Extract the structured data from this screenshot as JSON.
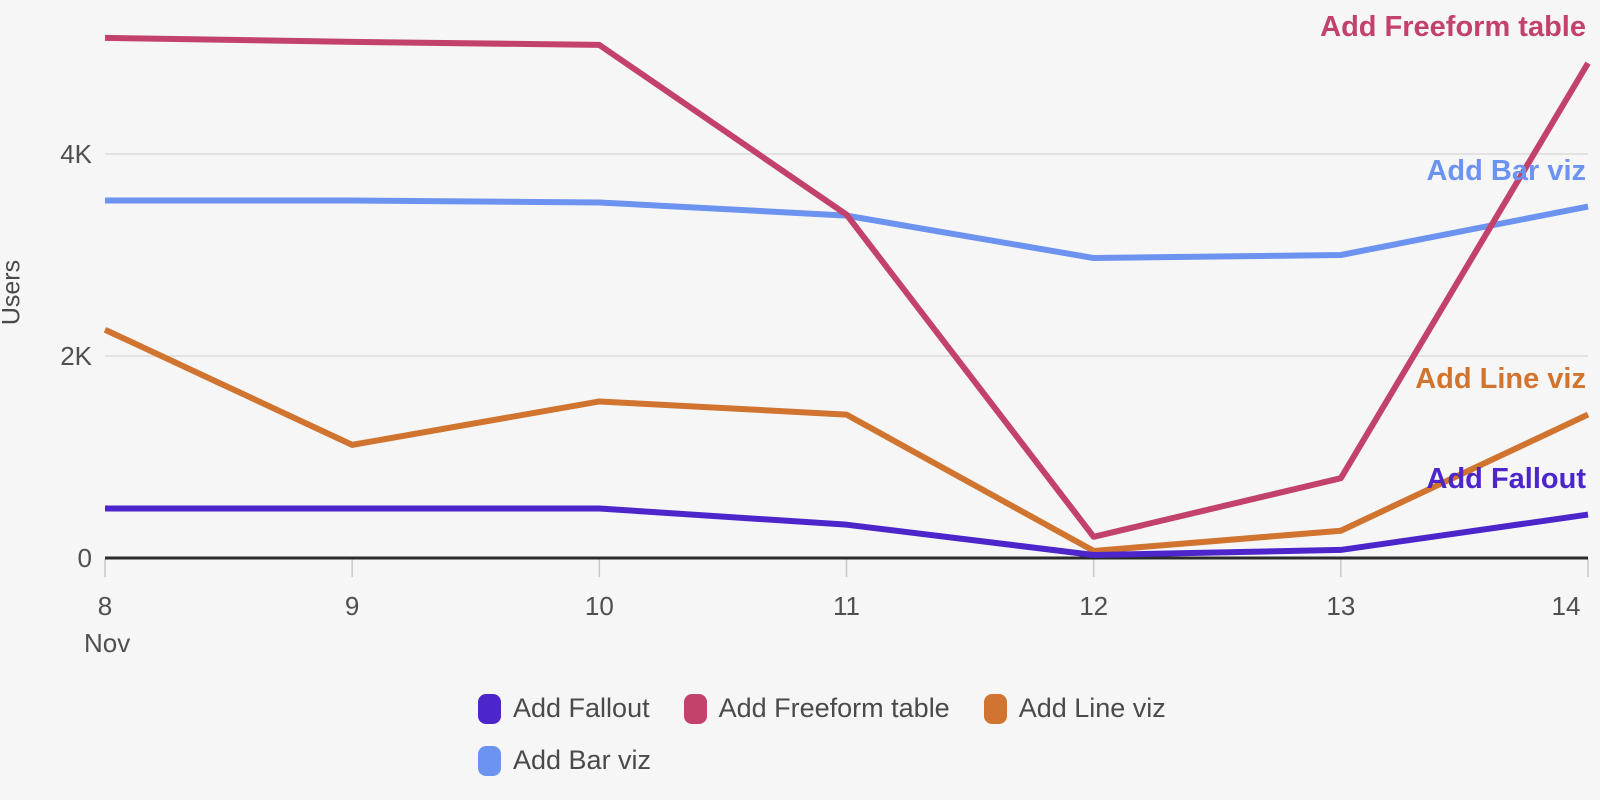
{
  "chart_data": {
    "type": "line",
    "title": "",
    "ylabel": "Users",
    "xlabel_month": "Nov",
    "categories": [
      "8",
      "9",
      "10",
      "11",
      "12",
      "13",
      "14"
    ],
    "series": [
      {
        "name": "Add Fallout",
        "color": "#4C26CB",
        "values": [
          490,
          490,
          490,
          330,
          30,
          80,
          430
        ]
      },
      {
        "name": "Add Freeform table",
        "color": "#C2426B",
        "values": [
          5150,
          5110,
          5080,
          3400,
          210,
          790,
          4900
        ]
      },
      {
        "name": "Add Line viz",
        "color": "#D0742F",
        "values": [
          2260,
          1120,
          1550,
          1420,
          70,
          270,
          1420
        ]
      },
      {
        "name": "Add Bar viz",
        "color": "#6D93F1",
        "values": [
          3540,
          3540,
          3520,
          3390,
          2970,
          3000,
          3480
        ]
      }
    ],
    "y_ticks": [
      {
        "label": "0",
        "value": 0
      },
      {
        "label": "2K",
        "value": 2000
      },
      {
        "label": "4K",
        "value": 4000
      }
    ],
    "ylim": [
      0,
      5560
    ],
    "grid": true,
    "legend_position": "bottom",
    "end_labels": true,
    "colors": {
      "background": "#F6F6F6",
      "gridline": "#E2E2E2",
      "axis_line": "#2B2B2B",
      "tick_mark": "#C9C9C9",
      "label_text": "#4F4F4F"
    }
  }
}
